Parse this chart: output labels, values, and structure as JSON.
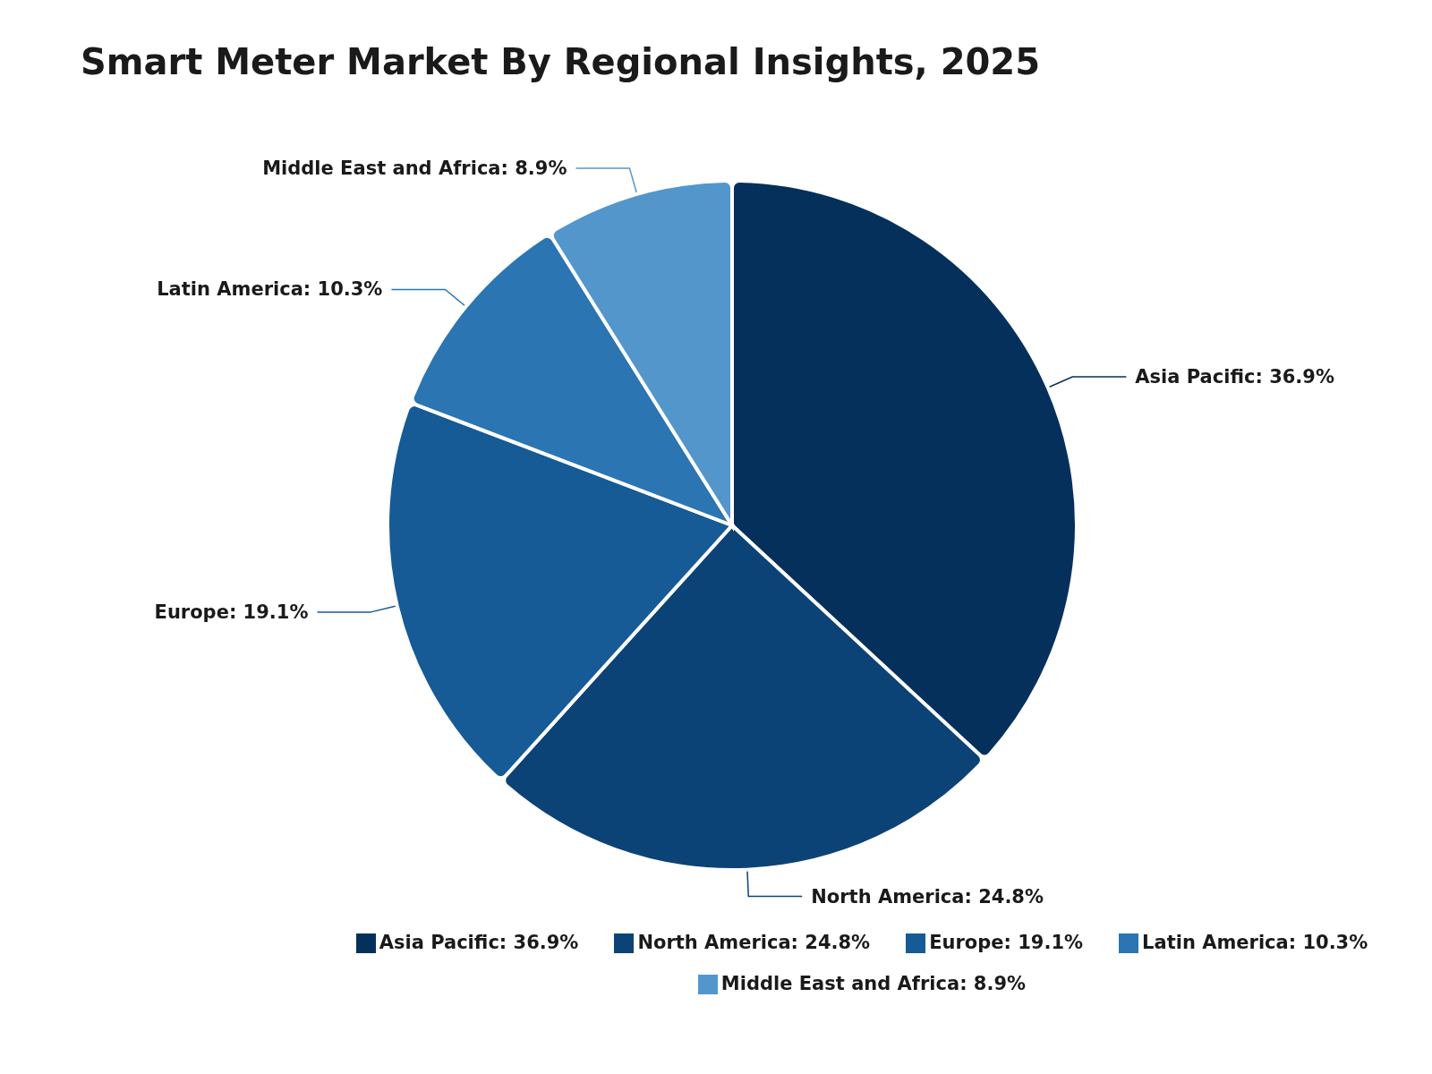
{
  "chart_data": {
    "type": "pie",
    "title": "Smart Meter Market By Regional Insights, 2025",
    "categories": [
      "Asia Pacific",
      "North America",
      "Europe",
      "Latin America",
      "Middle East and Africa"
    ],
    "values": [
      36.9,
      24.8,
      19.1,
      10.3,
      8.9
    ],
    "value_labels": [
      "36.9%",
      "24.8%",
      "19.1%",
      "10.3%",
      "8.9%"
    ],
    "colors": [
      "#06305c",
      "#0c4377",
      "#165a96",
      "#2b75b3",
      "#5396cc"
    ],
    "legend": "bottom"
  }
}
